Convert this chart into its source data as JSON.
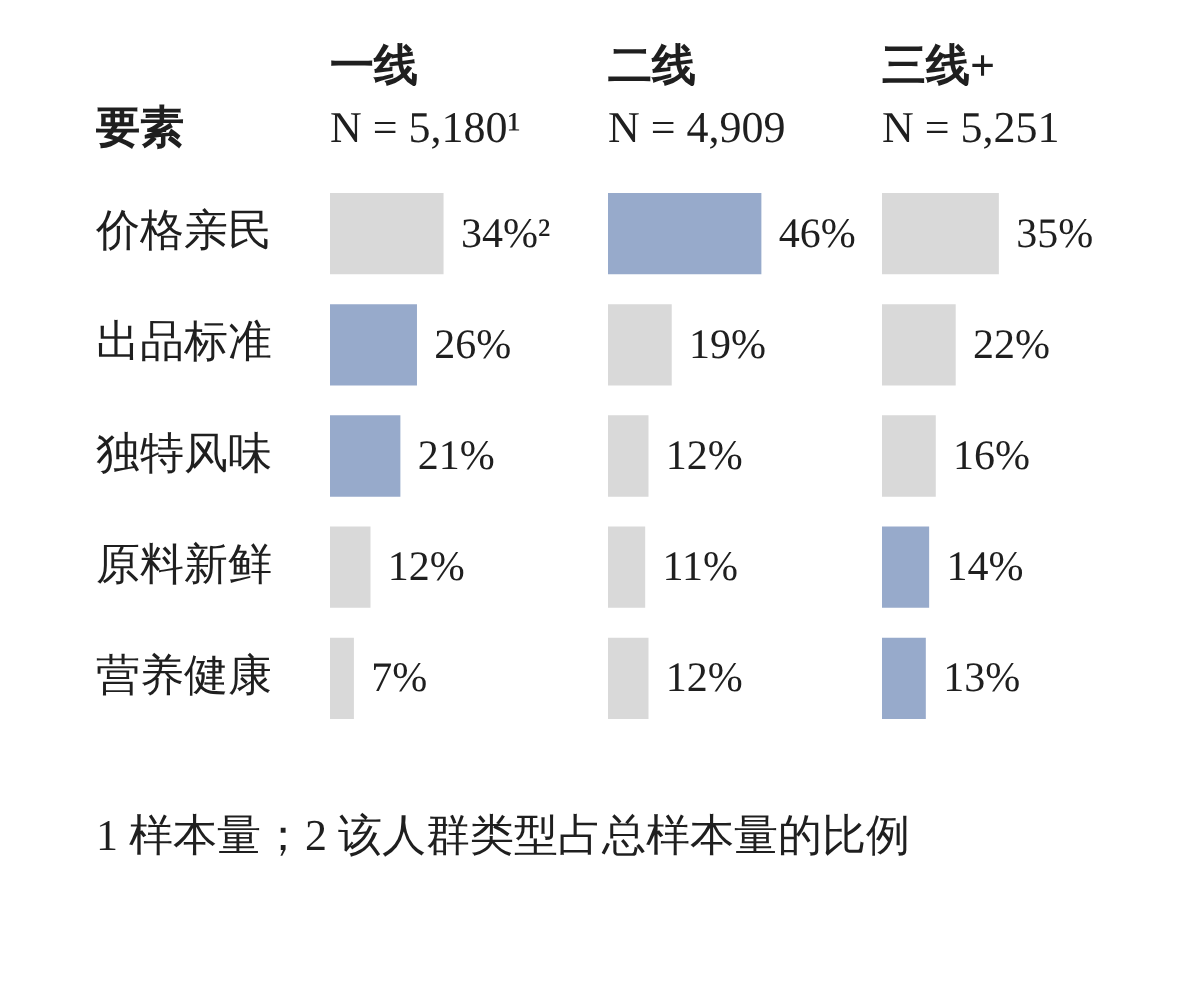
{
  "chart_data": [
    {
      "type": "bar",
      "orientation": "horizontal",
      "title": "一线",
      "subtitle": "N = 5,180¹",
      "ylabel": "要素",
      "categories": [
        "价格亲民",
        "出品标准",
        "独特风味",
        "原料新鲜",
        "营养健康"
      ],
      "values": [
        34,
        26,
        21,
        12,
        7
      ],
      "colors": [
        "#d9d9d9",
        "#97aacb",
        "#97aacb",
        "#d9d9d9",
        "#d9d9d9"
      ],
      "value_labels": [
        "34%²",
        "26%",
        "21%",
        "12%",
        "7%"
      ],
      "tick_labels": "y",
      "annotations": [
        "1 样本量；2 该人群类型占总样本量的比例"
      ]
    },
    {
      "type": "bar",
      "orientation": "horizontal",
      "title": "二线",
      "subtitle": "N = 4,909",
      "categories": [
        null,
        null,
        null,
        null,
        null
      ],
      "values": [
        46,
        19,
        12,
        11,
        12
      ],
      "colors": [
        "#97aacb",
        "#d9d9d9",
        "#d9d9d9",
        "#d9d9d9",
        "#d9d9d9"
      ],
      "value_labels": [
        "46%",
        "19%",
        "12%",
        "11%",
        "12%"
      ],
      "tick_labels": false
    },
    {
      "type": "bar",
      "orientation": "horizontal",
      "title": "三线+",
      "subtitle": "N = 5,251",
      "categories": [
        null,
        null,
        null,
        null,
        null
      ],
      "values": [
        35,
        22,
        16,
        14,
        13
      ],
      "colors": [
        "#d9d9d9",
        "#d9d9d9",
        "#d9d9d9",
        "#97aacb",
        "#97aacb"
      ],
      "value_labels": [
        "35%",
        "22%",
        "16%",
        "14%",
        "13%"
      ],
      "tick_labels": false
    }
  ]
}
